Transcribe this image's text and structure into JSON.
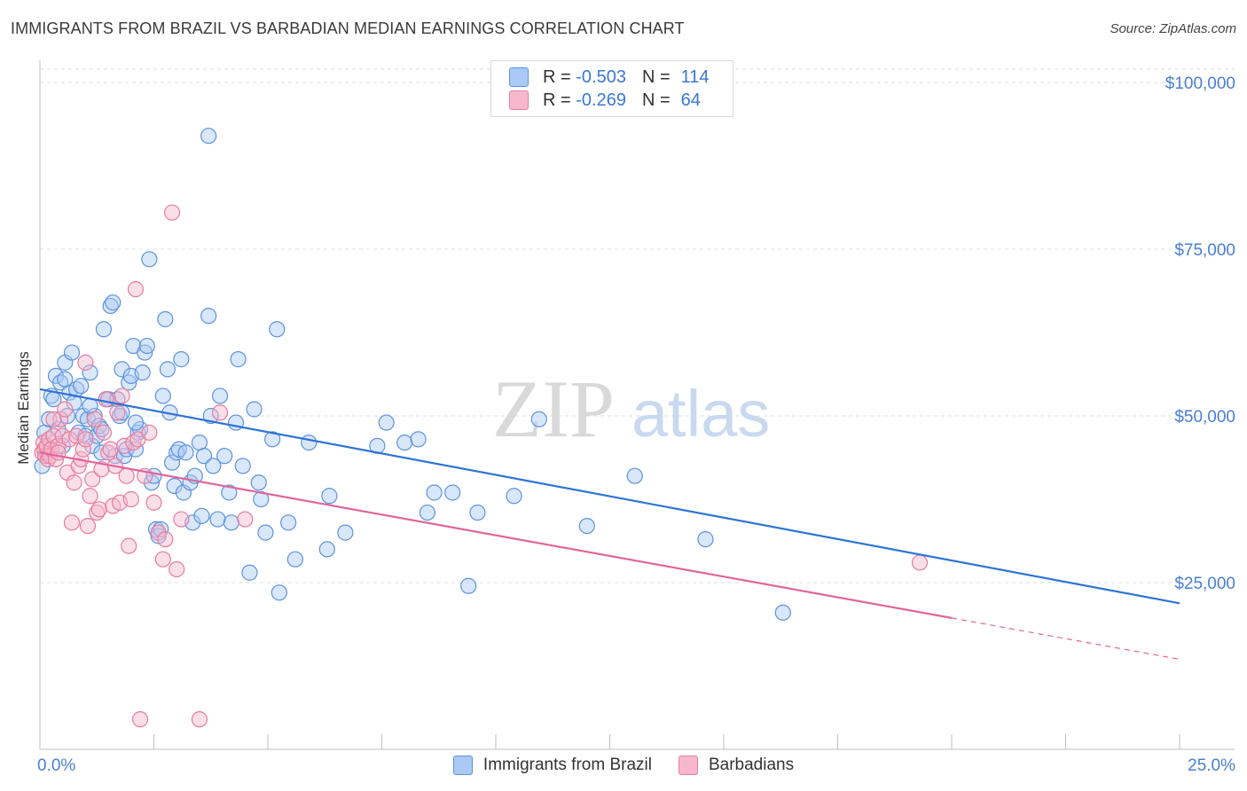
{
  "title": "IMMIGRANTS FROM BRAZIL VS BARBADIAN MEDIAN EARNINGS CORRELATION CHART",
  "source": "Source: ZipAtlas.com",
  "watermark": {
    "zip": "ZIP",
    "atlas": "atlas"
  },
  "legend": {
    "r_label": "R =",
    "n_label": "N =",
    "rows": [
      {
        "r": "-0.503",
        "n": "114",
        "fill": "#aac9f5",
        "stroke": "#5d93de"
      },
      {
        "r": "-0.269",
        "n": "64",
        "fill": "#f7b8cd",
        "stroke": "#e77ca0"
      }
    ]
  },
  "chart_data": {
    "type": "scatter",
    "title": "IMMIGRANTS FROM BRAZIL VS BARBADIAN MEDIAN EARNINGS CORRELATION CHART",
    "xlabel": "",
    "ylabel": "Median Earnings",
    "xlim": [
      0,
      25
    ],
    "ylim": [
      0,
      102000
    ],
    "x_tick_labels": [
      {
        "value": 0,
        "label": "0.0%"
      },
      {
        "value": 25,
        "label": "25.0%"
      }
    ],
    "y_tick_labels": [
      {
        "value": 25000,
        "label": "$25,000"
      },
      {
        "value": 50000,
        "label": "$50,000"
      },
      {
        "value": 75000,
        "label": "$75,000"
      },
      {
        "value": 100000,
        "label": "$100,000"
      }
    ],
    "series": [
      {
        "name": "Immigrants from Brazil",
        "color": "#5d93de",
        "fill": "#aac9f5",
        "trend": {
          "x0": 0,
          "y0": 54000,
          "x1": 25,
          "y1": 21900,
          "solid_until": 25
        },
        "points": [
          [
            0.05,
            42500
          ],
          [
            0.1,
            47500
          ],
          [
            0.15,
            44500
          ],
          [
            0.2,
            49500
          ],
          [
            0.25,
            53000
          ],
          [
            0.3,
            52500
          ],
          [
            0.35,
            56000
          ],
          [
            0.4,
            48000
          ],
          [
            0.45,
            55000
          ],
          [
            0.5,
            45500
          ],
          [
            0.55,
            58000
          ],
          [
            0.6,
            50000
          ],
          [
            0.65,
            53500
          ],
          [
            0.7,
            59500
          ],
          [
            0.75,
            52000
          ],
          [
            0.8,
            54000
          ],
          [
            0.85,
            47500
          ],
          [
            0.9,
            54500
          ],
          [
            0.95,
            50000
          ],
          [
            1.0,
            47000
          ],
          [
            1.05,
            49500
          ],
          [
            1.1,
            56500
          ],
          [
            1.15,
            45500
          ],
          [
            1.2,
            50000
          ],
          [
            1.25,
            47000
          ],
          [
            1.3,
            48500
          ],
          [
            1.35,
            48000
          ],
          [
            1.4,
            63000
          ],
          [
            1.45,
            52500
          ],
          [
            1.5,
            52500
          ],
          [
            1.55,
            66500
          ],
          [
            1.6,
            67000
          ],
          [
            1.65,
            44000
          ],
          [
            1.7,
            52500
          ],
          [
            1.75,
            50000
          ],
          [
            1.8,
            57000
          ],
          [
            1.85,
            44000
          ],
          [
            1.9,
            45000
          ],
          [
            1.95,
            55000
          ],
          [
            2.0,
            56000
          ],
          [
            2.05,
            60500
          ],
          [
            2.1,
            45000
          ],
          [
            2.15,
            47500
          ],
          [
            2.2,
            48000
          ],
          [
            2.25,
            56500
          ],
          [
            2.3,
            59500
          ],
          [
            2.35,
            60500
          ],
          [
            2.4,
            73500
          ],
          [
            2.45,
            40000
          ],
          [
            2.5,
            41000
          ],
          [
            2.55,
            33000
          ],
          [
            2.6,
            32000
          ],
          [
            2.65,
            33000
          ],
          [
            2.7,
            53000
          ],
          [
            2.75,
            64500
          ],
          [
            2.8,
            57000
          ],
          [
            2.85,
            50500
          ],
          [
            2.9,
            43000
          ],
          [
            2.95,
            39500
          ],
          [
            3.0,
            44500
          ],
          [
            3.05,
            45000
          ],
          [
            3.1,
            58500
          ],
          [
            3.15,
            38500
          ],
          [
            3.2,
            44500
          ],
          [
            3.3,
            40000
          ],
          [
            3.35,
            34000
          ],
          [
            3.4,
            41000
          ],
          [
            3.5,
            46000
          ],
          [
            3.55,
            35000
          ],
          [
            3.6,
            44000
          ],
          [
            3.7,
            65000
          ],
          [
            3.75,
            50000
          ],
          [
            3.8,
            42500
          ],
          [
            3.9,
            34500
          ],
          [
            3.95,
            53000
          ],
          [
            4.05,
            44000
          ],
          [
            4.15,
            38500
          ],
          [
            4.2,
            34000
          ],
          [
            4.3,
            49000
          ],
          [
            4.35,
            58500
          ],
          [
            4.45,
            42500
          ],
          [
            4.6,
            26500
          ],
          [
            4.7,
            51000
          ],
          [
            4.8,
            40000
          ],
          [
            4.85,
            37500
          ],
          [
            4.95,
            32500
          ],
          [
            5.1,
            46500
          ],
          [
            5.2,
            63000
          ],
          [
            5.25,
            23500
          ],
          [
            5.45,
            34000
          ],
          [
            5.6,
            28500
          ],
          [
            5.9,
            46000
          ],
          [
            6.3,
            30000
          ],
          [
            6.35,
            38000
          ],
          [
            6.7,
            32500
          ],
          [
            7.4,
            45500
          ],
          [
            7.6,
            49000
          ],
          [
            8.0,
            46000
          ],
          [
            8.3,
            46500
          ],
          [
            8.5,
            35500
          ],
          [
            8.65,
            38500
          ],
          [
            9.05,
            38500
          ],
          [
            9.4,
            24500
          ],
          [
            9.6,
            35500
          ],
          [
            10.4,
            38000
          ],
          [
            10.95,
            49500
          ],
          [
            12.0,
            33500
          ],
          [
            13.05,
            41000
          ],
          [
            14.6,
            31500
          ],
          [
            16.3,
            20500
          ],
          [
            3.7,
            92000
          ],
          [
            1.1,
            51500
          ],
          [
            0.55,
            55500
          ],
          [
            1.35,
            44500
          ],
          [
            1.8,
            50500
          ],
          [
            2.1,
            49000
          ]
        ]
      },
      {
        "name": "Barbadians",
        "color": "#e77ca0",
        "fill": "#f7b8cd",
        "trend": {
          "x0": 0,
          "y0": 44500,
          "x1": 25,
          "y1": 13500,
          "solid_until": 20
        },
        "points": [
          [
            0.05,
            44500
          ],
          [
            0.08,
            46000
          ],
          [
            0.1,
            45000
          ],
          [
            0.12,
            44000
          ],
          [
            0.15,
            45500
          ],
          [
            0.18,
            43500
          ],
          [
            0.2,
            46500
          ],
          [
            0.22,
            44000
          ],
          [
            0.25,
            45000
          ],
          [
            0.3,
            47000
          ],
          [
            0.35,
            43500
          ],
          [
            0.4,
            45500
          ],
          [
            0.45,
            49500
          ],
          [
            0.5,
            47000
          ],
          [
            0.55,
            51000
          ],
          [
            0.6,
            41500
          ],
          [
            0.65,
            46500
          ],
          [
            0.7,
            34000
          ],
          [
            0.75,
            40000
          ],
          [
            0.8,
            47000
          ],
          [
            0.85,
            42500
          ],
          [
            0.9,
            43500
          ],
          [
            0.95,
            45000
          ],
          [
            1.0,
            58000
          ],
          [
            1.05,
            33500
          ],
          [
            1.1,
            38000
          ],
          [
            1.15,
            40500
          ],
          [
            1.2,
            49500
          ],
          [
            1.25,
            35500
          ],
          [
            1.3,
            36000
          ],
          [
            1.35,
            42000
          ],
          [
            1.4,
            47500
          ],
          [
            1.45,
            52500
          ],
          [
            1.5,
            44500
          ],
          [
            1.55,
            45000
          ],
          [
            1.6,
            36500
          ],
          [
            1.65,
            42500
          ],
          [
            1.7,
            50500
          ],
          [
            1.75,
            37000
          ],
          [
            1.8,
            53000
          ],
          [
            1.85,
            45500
          ],
          [
            1.9,
            41000
          ],
          [
            1.95,
            30500
          ],
          [
            2.0,
            37500
          ],
          [
            2.05,
            46000
          ],
          [
            2.1,
            69000
          ],
          [
            2.15,
            46500
          ],
          [
            2.2,
            4500
          ],
          [
            2.3,
            41000
          ],
          [
            2.4,
            47500
          ],
          [
            2.5,
            37000
          ],
          [
            2.6,
            32500
          ],
          [
            2.7,
            28500
          ],
          [
            2.75,
            31500
          ],
          [
            2.9,
            80500
          ],
          [
            3.0,
            27000
          ],
          [
            3.1,
            34500
          ],
          [
            3.5,
            4500
          ],
          [
            3.95,
            50500
          ],
          [
            4.5,
            34500
          ],
          [
            0.3,
            49500
          ],
          [
            0.4,
            44500
          ],
          [
            1.0,
            46500
          ],
          [
            19.3,
            28000
          ]
        ]
      }
    ]
  }
}
